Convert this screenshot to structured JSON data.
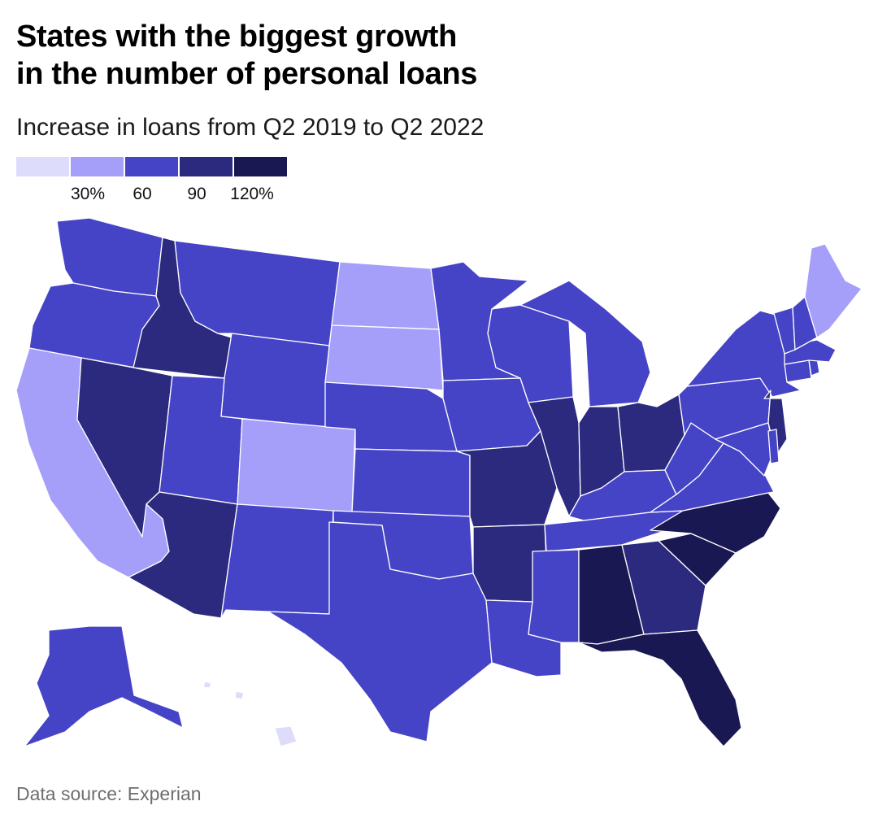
{
  "title_lines": [
    "States with the biggest growth",
    "in the number of personal loans"
  ],
  "subtitle": "Increase in loans from Q2 2019 to Q2 2022",
  "source": "Data source: Experian",
  "colors": {
    "bin1": "#dedcfb",
    "bin2": "#a59ff9",
    "bin3": "#4644c6",
    "bin4": "#2c2a7e",
    "bin5": "#1a1852"
  },
  "legend": {
    "bins": [
      "bin1",
      "bin2",
      "bin3",
      "bin4",
      "bin5"
    ],
    "ticks": [
      "30%",
      "60",
      "90",
      "120%"
    ]
  },
  "map_data": {
    "type": "choropleth",
    "regions": [
      {
        "name": "Washington",
        "bin": "bin3"
      },
      {
        "name": "Oregon",
        "bin": "bin3"
      },
      {
        "name": "California",
        "bin": "bin2"
      },
      {
        "name": "Idaho",
        "bin": "bin4"
      },
      {
        "name": "Nevada",
        "bin": "bin4"
      },
      {
        "name": "Montana",
        "bin": "bin3"
      },
      {
        "name": "Wyoming",
        "bin": "bin3"
      },
      {
        "name": "Utah",
        "bin": "bin3"
      },
      {
        "name": "Arizona",
        "bin": "bin4"
      },
      {
        "name": "Colorado",
        "bin": "bin2"
      },
      {
        "name": "New Mexico",
        "bin": "bin3"
      },
      {
        "name": "North Dakota",
        "bin": "bin2"
      },
      {
        "name": "South Dakota",
        "bin": "bin2"
      },
      {
        "name": "Nebraska",
        "bin": "bin3"
      },
      {
        "name": "Kansas",
        "bin": "bin3"
      },
      {
        "name": "Oklahoma",
        "bin": "bin3"
      },
      {
        "name": "Texas",
        "bin": "bin3"
      },
      {
        "name": "Minnesota",
        "bin": "bin3"
      },
      {
        "name": "Iowa",
        "bin": "bin3"
      },
      {
        "name": "Missouri",
        "bin": "bin4"
      },
      {
        "name": "Arkansas",
        "bin": "bin4"
      },
      {
        "name": "Louisiana",
        "bin": "bin3"
      },
      {
        "name": "Wisconsin",
        "bin": "bin3"
      },
      {
        "name": "Illinois",
        "bin": "bin4"
      },
      {
        "name": "Michigan",
        "bin": "bin3"
      },
      {
        "name": "Indiana",
        "bin": "bin4"
      },
      {
        "name": "Ohio",
        "bin": "bin4"
      },
      {
        "name": "Kentucky",
        "bin": "bin3"
      },
      {
        "name": "Tennessee",
        "bin": "bin3"
      },
      {
        "name": "Mississippi",
        "bin": "bin3"
      },
      {
        "name": "Alabama",
        "bin": "bin5"
      },
      {
        "name": "Georgia",
        "bin": "bin4"
      },
      {
        "name": "Florida",
        "bin": "bin5"
      },
      {
        "name": "South Carolina",
        "bin": "bin5"
      },
      {
        "name": "North Carolina",
        "bin": "bin5"
      },
      {
        "name": "Virginia",
        "bin": "bin3"
      },
      {
        "name": "West Virginia",
        "bin": "bin3"
      },
      {
        "name": "Pennsylvania",
        "bin": "bin3"
      },
      {
        "name": "New York",
        "bin": "bin3"
      },
      {
        "name": "New Jersey",
        "bin": "bin4"
      },
      {
        "name": "Maryland",
        "bin": "bin3"
      },
      {
        "name": "Delaware",
        "bin": "bin3"
      },
      {
        "name": "Connecticut",
        "bin": "bin3"
      },
      {
        "name": "Rhode Island",
        "bin": "bin3"
      },
      {
        "name": "Massachusetts",
        "bin": "bin3"
      },
      {
        "name": "Vermont",
        "bin": "bin3"
      },
      {
        "name": "New Hampshire",
        "bin": "bin3"
      },
      {
        "name": "Maine",
        "bin": "bin2"
      },
      {
        "name": "Alaska",
        "bin": "bin3"
      },
      {
        "name": "Hawaii",
        "bin": "bin1"
      }
    ]
  }
}
